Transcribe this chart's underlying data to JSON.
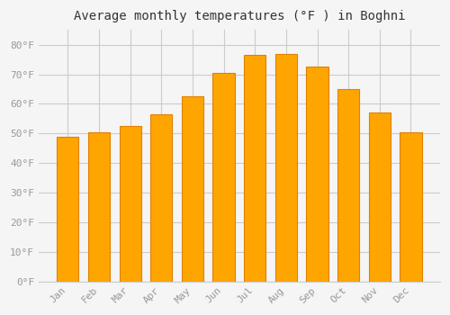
{
  "title": "Average monthly temperatures (°F ) in Boghni",
  "months": [
    "Jan",
    "Feb",
    "Mar",
    "Apr",
    "May",
    "Jun",
    "Jul",
    "Aug",
    "Sep",
    "Oct",
    "Nov",
    "Dec"
  ],
  "values": [
    49,
    50.5,
    52.5,
    56.5,
    62.5,
    70.5,
    76.5,
    77,
    72.5,
    65,
    57,
    50.5
  ],
  "bar_color": "#FFA500",
  "bar_edge_color": "#E08000",
  "background_color": "#F5F5F5",
  "grid_color": "#CCCCCC",
  "yticks": [
    0,
    10,
    20,
    30,
    40,
    50,
    60,
    70,
    80
  ],
  "ylim": [
    0,
    85
  ],
  "tick_label_color": "#999999",
  "title_color": "#333333"
}
